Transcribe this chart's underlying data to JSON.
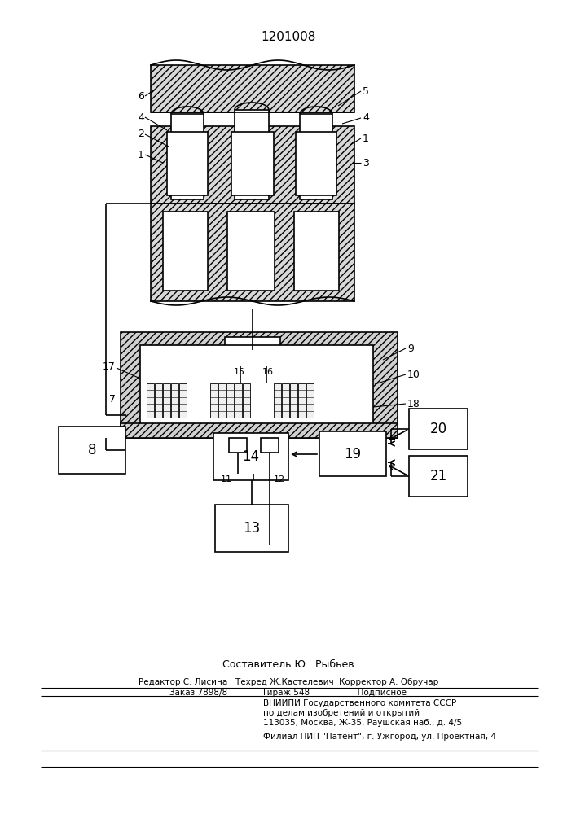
{
  "title": "1201008",
  "bg_color": "#ffffff",
  "title_fontsize": 11,
  "footer": {
    "sestavitel": "Составитель Ю.  Рыбьев",
    "line1": "Редактор С. Лисина   Техред Ж.Кастелевич  Корректор А. Обручар",
    "line2": "Заказ 7898/8             Тираж 548                  Подписное",
    "line3": "    ВНИИПИ Государственного комитета СССР",
    "line4": "    по делам изобретений и открытий",
    "line5": "    113035, Москва, Ж-35, Раушская наб., д. 4/5",
    "line6": "    Филиал ПИП \"Патент\", г. Ужгород, ул. Проектная, 4"
  }
}
